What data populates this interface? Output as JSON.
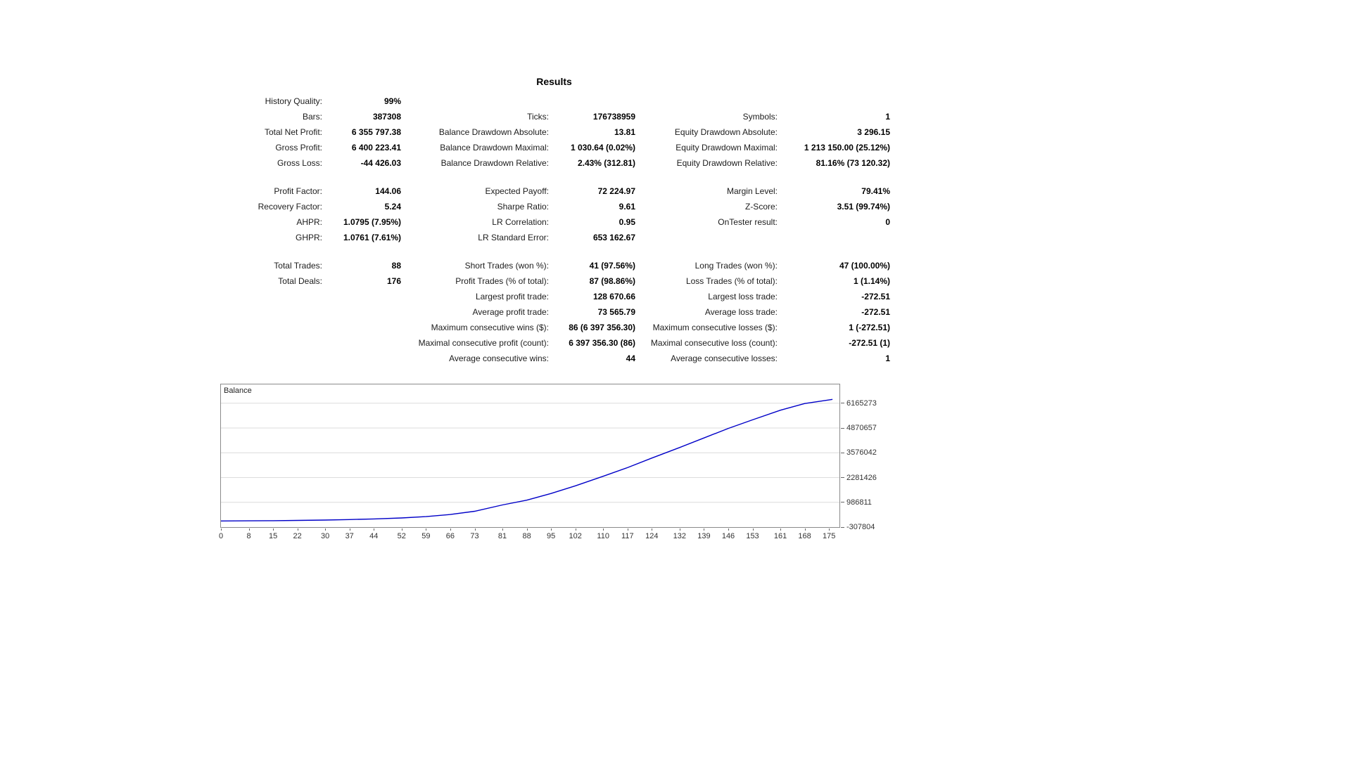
{
  "page": {
    "title": "Results"
  },
  "stats": {
    "groups": [
      {
        "rows": [
          [
            "History Quality:",
            "99%",
            "",
            "",
            "",
            ""
          ],
          [
            "Bars:",
            "387308",
            "Ticks:",
            "176738959",
            "Symbols:",
            "1"
          ],
          [
            "Total Net Profit:",
            "6 355 797.38",
            "Balance Drawdown Absolute:",
            "13.81",
            "Equity Drawdown Absolute:",
            "3 296.15"
          ],
          [
            "Gross Profit:",
            "6 400 223.41",
            "Balance Drawdown Maximal:",
            "1 030.64 (0.02%)",
            "Equity Drawdown Maximal:",
            "1 213 150.00 (25.12%)"
          ],
          [
            "Gross Loss:",
            "-44 426.03",
            "Balance Drawdown Relative:",
            "2.43% (312.81)",
            "Equity Drawdown Relative:",
            "81.16% (73 120.32)"
          ]
        ]
      },
      {
        "rows": [
          [
            "Profit Factor:",
            "144.06",
            "Expected Payoff:",
            "72 224.97",
            "Margin Level:",
            "79.41%"
          ],
          [
            "Recovery Factor:",
            "5.24",
            "Sharpe Ratio:",
            "9.61",
            "Z-Score:",
            "3.51 (99.74%)"
          ],
          [
            "AHPR:",
            "1.0795 (7.95%)",
            "LR Correlation:",
            "0.95",
            "OnTester result:",
            "0"
          ],
          [
            "GHPR:",
            "1.0761 (7.61%)",
            "LR Standard Error:",
            "653 162.67",
            "",
            ""
          ]
        ]
      },
      {
        "rows": [
          [
            "Total Trades:",
            "88",
            "Short Trades (won %):",
            "41 (97.56%)",
            "Long Trades (won %):",
            "47 (100.00%)"
          ],
          [
            "Total Deals:",
            "176",
            "Profit Trades (% of total):",
            "87 (98.86%)",
            "Loss Trades (% of total):",
            "1 (1.14%)"
          ],
          [
            "",
            "",
            "Largest profit trade:",
            "128 670.66",
            "Largest loss trade:",
            "-272.51"
          ],
          [
            "",
            "",
            "Average profit trade:",
            "73 565.79",
            "Average loss trade:",
            "-272.51"
          ],
          [
            "",
            "",
            "Maximum consecutive wins ($):",
            "86 (6 397 356.30)",
            "Maximum consecutive losses ($):",
            "1 (-272.51)"
          ],
          [
            "",
            "",
            "Maximal consecutive profit (count):",
            "6 397 356.30 (86)",
            "Maximal consecutive loss (count):",
            "-272.51 (1)"
          ],
          [
            "",
            "",
            "Average consecutive wins:",
            "44",
            "Average consecutive losses:",
            "1"
          ]
        ]
      }
    ]
  },
  "chart_data": {
    "type": "line",
    "title": "Balance",
    "line_color": "#0000c8",
    "grid": "horizontal",
    "legend_position": "top-left-inside",
    "xlim": [
      0,
      178
    ],
    "ylim": [
      -307804,
      7150000
    ],
    "x_ticks": [
      0,
      8,
      15,
      22,
      30,
      37,
      44,
      52,
      59,
      66,
      73,
      81,
      88,
      95,
      102,
      110,
      117,
      124,
      132,
      139,
      146,
      153,
      161,
      168,
      175
    ],
    "y_ticks": [
      6165273,
      4870657,
      3576042,
      2281426,
      986811,
      -307804
    ],
    "series": [
      {
        "name": "Balance",
        "x": [
          0,
          8,
          15,
          22,
          30,
          37,
          44,
          52,
          59,
          66,
          73,
          81,
          88,
          95,
          102,
          110,
          117,
          124,
          132,
          139,
          146,
          153,
          161,
          168,
          176
        ],
        "y": [
          10000,
          18000,
          28000,
          42000,
          60000,
          85000,
          120000,
          170000,
          240000,
          350000,
          520000,
          850000,
          1100000,
          1450000,
          1850000,
          2350000,
          2800000,
          3300000,
          3850000,
          4350000,
          4850000,
          5300000,
          5800000,
          6150000,
          6365797
        ]
      }
    ]
  }
}
